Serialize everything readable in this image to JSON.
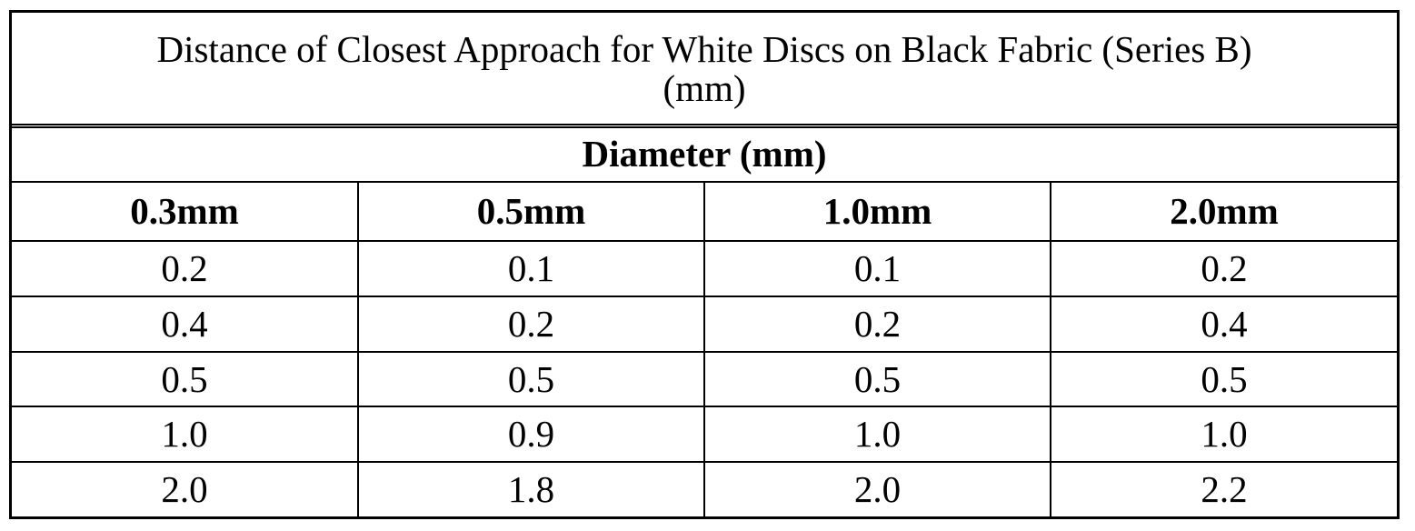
{
  "table": {
    "title_line1": "Distance of Closest Approach for White Discs on Black Fabric (Series B)",
    "title_line2": "(mm)",
    "group_header": "Diameter (mm)",
    "columns": [
      "0.3mm",
      "0.5mm",
      "1.0mm",
      "2.0mm"
    ],
    "rows": [
      [
        "0.2",
        "0.1",
        "0.1",
        "0.2"
      ],
      [
        "0.4",
        "0.2",
        "0.2",
        "0.4"
      ],
      [
        "0.5",
        "0.5",
        "0.5",
        "0.5"
      ],
      [
        "1.0",
        "0.9",
        "1.0",
        "1.0"
      ],
      [
        "2.0",
        "1.8",
        "2.0",
        "2.2"
      ]
    ]
  }
}
